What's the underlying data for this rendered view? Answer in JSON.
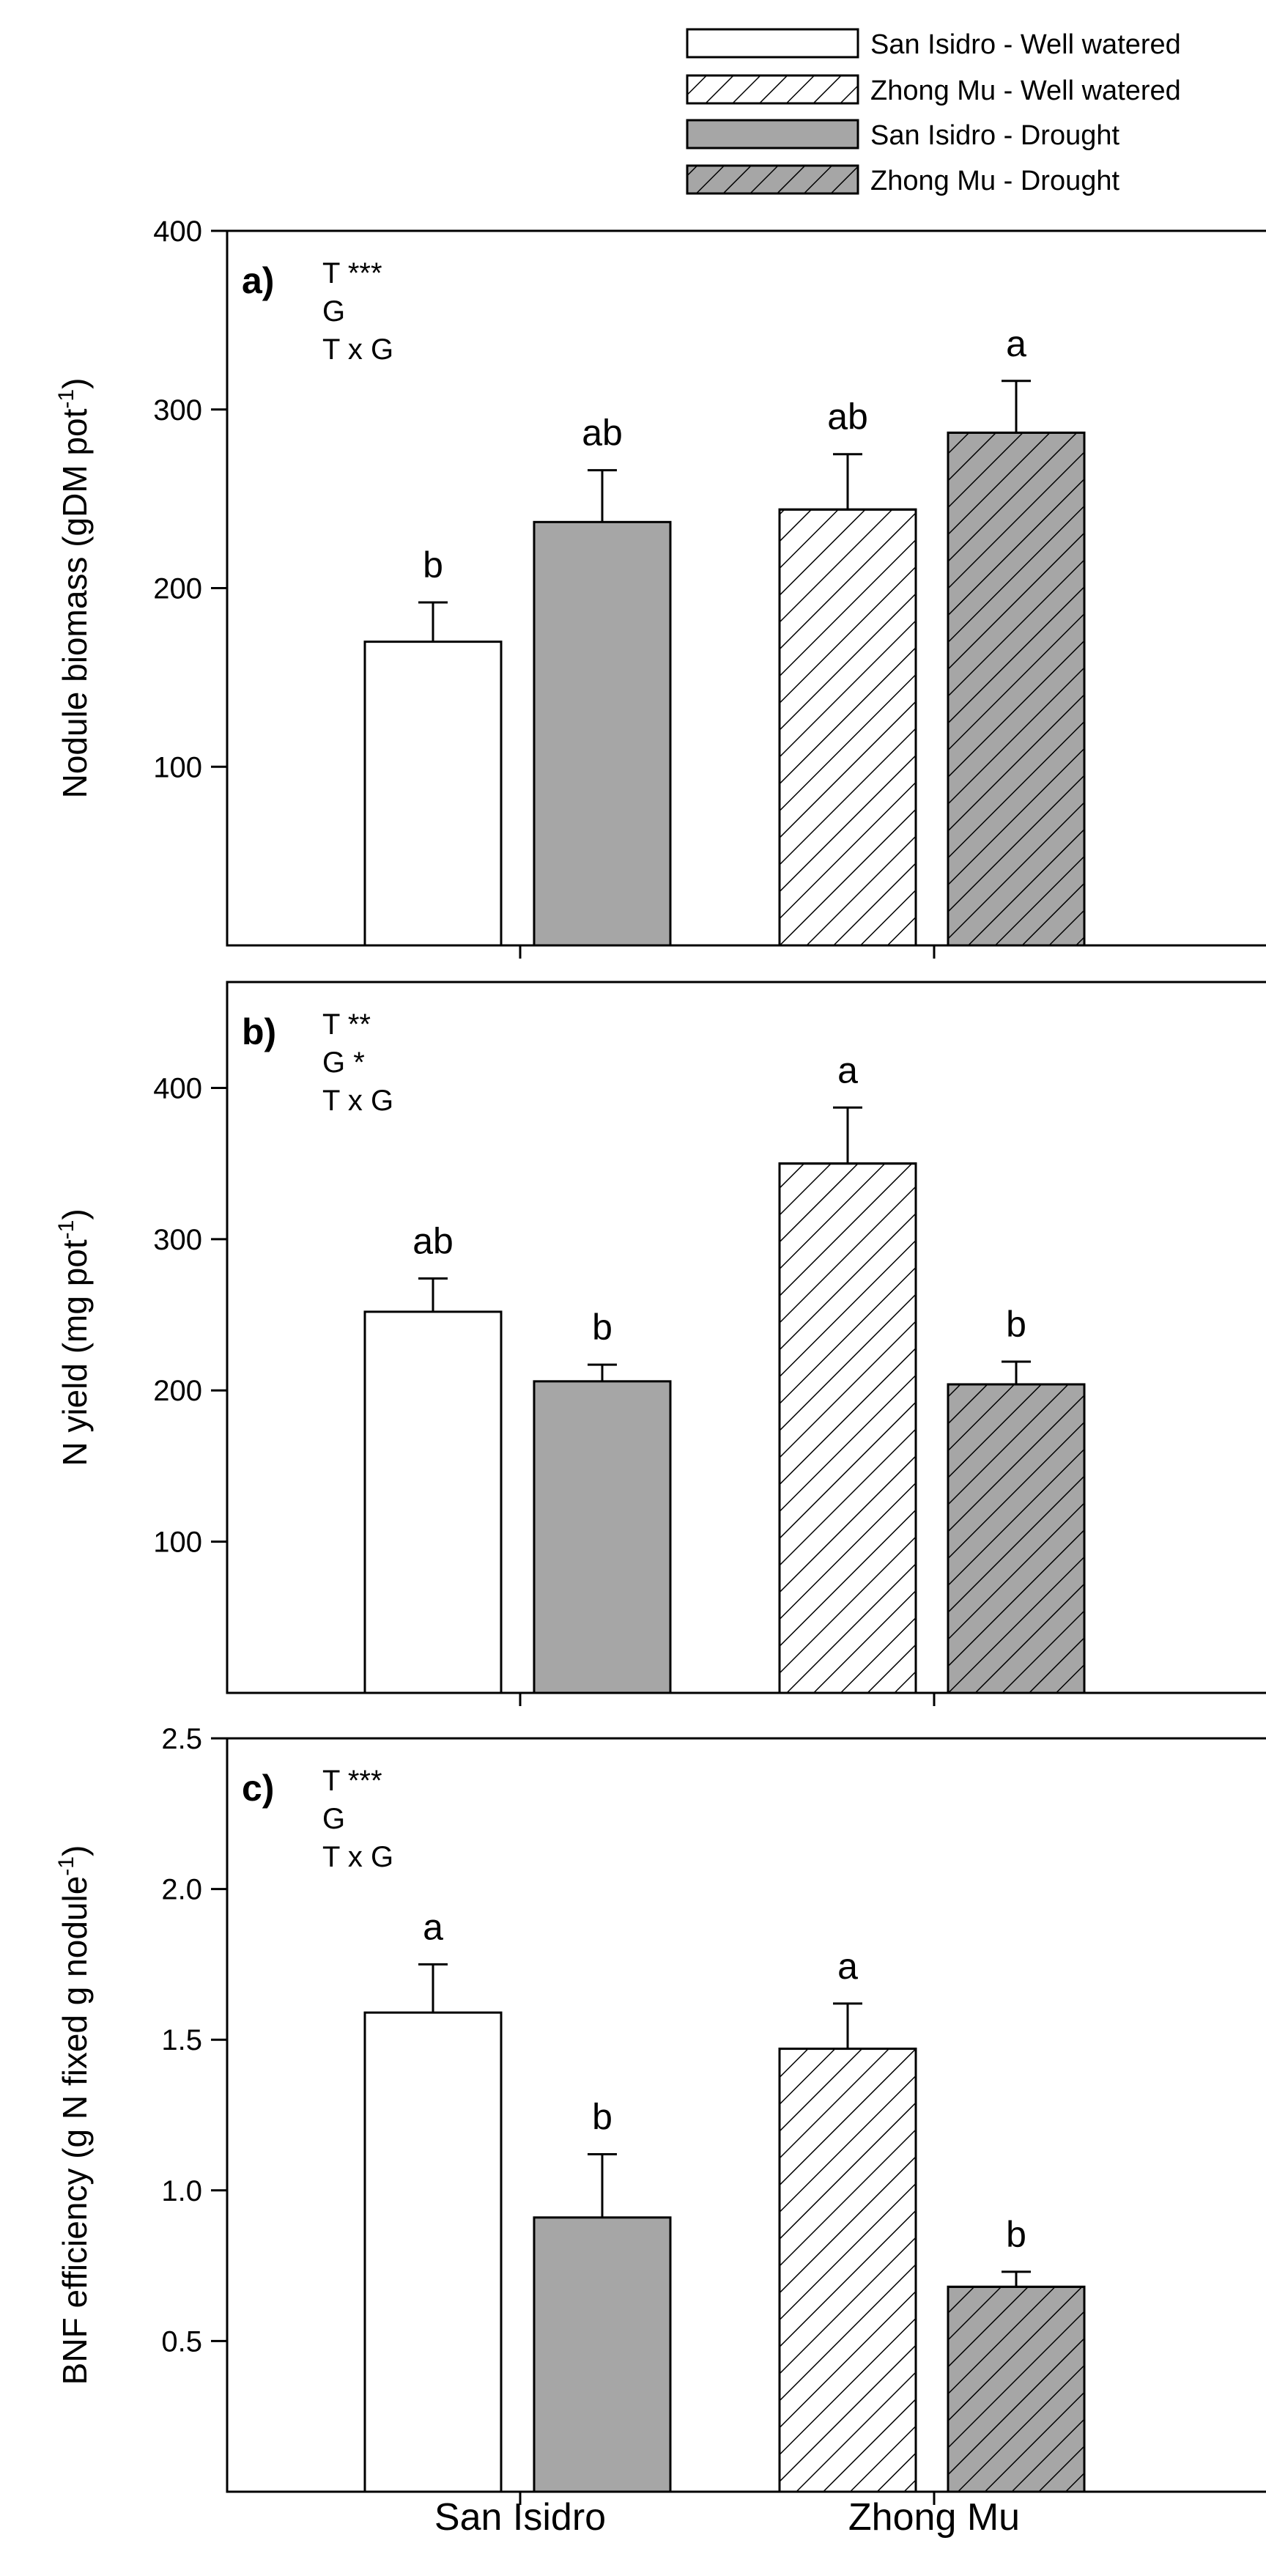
{
  "legend": [
    {
      "label": "San Isidro - Well watered",
      "fill": "#ffffff",
      "hatch": false
    },
    {
      "label": "Zhong Mu -  Well watered",
      "fill": "#ffffff",
      "hatch": true
    },
    {
      "label": "San Isidro - Drought",
      "fill": "#a6a6a6",
      "hatch": false
    },
    {
      "label": "Zhong Mu - Drought",
      "fill": "#a6a6a6",
      "hatch": true
    }
  ],
  "colors": {
    "drought_fill": "#a6a6a6",
    "watered_fill": "#ffffff",
    "stroke": "#000000"
  },
  "x_categories": [
    "San Isidro",
    "Zhong Mu"
  ],
  "chart_data": [
    {
      "type": "bar",
      "panel": "a)",
      "ylabel_main": "Nodule biomass (gDM pot",
      "ylabel_sup": "-1",
      "ylabel_tail": ")",
      "ylim": [
        0,
        400
      ],
      "yticks": [
        100,
        200,
        300,
        400
      ],
      "ytick_labels": [
        "100",
        "200",
        "300",
        "400"
      ],
      "stats": [
        "T ***",
        "G",
        "T x G"
      ],
      "categories": [
        "San Isidro",
        "Zhong Mu"
      ],
      "series": [
        {
          "name": "San Isidro - Well watered",
          "cat": 0,
          "value": 170,
          "error": 22,
          "letter": "b"
        },
        {
          "name": "San Isidro - Drought",
          "cat": 0,
          "value": 237,
          "error": 29,
          "letter": "ab"
        },
        {
          "name": "Zhong Mu -  Well watered",
          "cat": 1,
          "value": 244,
          "error": 31,
          "letter": "ab"
        },
        {
          "name": "Zhong Mu - Drought",
          "cat": 1,
          "value": 287,
          "error": 29,
          "letter": "a"
        }
      ]
    },
    {
      "type": "bar",
      "panel": "b)",
      "ylabel_main": "N yield (mg pot",
      "ylabel_sup": "-1",
      "ylabel_tail": ")",
      "ylim": [
        0,
        470
      ],
      "yticks": [
        100,
        200,
        300,
        400
      ],
      "ytick_labels": [
        "100",
        "200",
        "300",
        "400"
      ],
      "stats": [
        "T **",
        "G *",
        "T x G"
      ],
      "categories": [
        "San Isidro",
        "Zhong Mu"
      ],
      "series": [
        {
          "name": "San Isidro - Well watered",
          "cat": 0,
          "value": 252,
          "error": 22,
          "letter": "ab"
        },
        {
          "name": "San Isidro - Drought",
          "cat": 0,
          "value": 206,
          "error": 11,
          "letter": "b"
        },
        {
          "name": "Zhong Mu -  Well watered",
          "cat": 1,
          "value": 350,
          "error": 37,
          "letter": "a"
        },
        {
          "name": "Zhong Mu - Drought",
          "cat": 1,
          "value": 204,
          "error": 15,
          "letter": "b"
        }
      ]
    },
    {
      "type": "bar",
      "panel": "c)",
      "ylabel_main": "BNF efficiency (g N fixed g nodule",
      "ylabel_sup": "-1",
      "ylabel_tail": ")",
      "ylim": [
        0,
        2.5
      ],
      "yticks": [
        0.5,
        1.0,
        1.5,
        2.0,
        2.5
      ],
      "ytick_labels": [
        "0.5",
        "1.0",
        "1.5",
        "2.0",
        "2.5"
      ],
      "stats": [
        "T ***",
        "G",
        "T x G"
      ],
      "categories": [
        "San Isidro",
        "Zhong Mu"
      ],
      "series": [
        {
          "name": "San Isidro - Well watered",
          "cat": 0,
          "value": 1.59,
          "error": 0.16,
          "letter": "a"
        },
        {
          "name": "San Isidro - Drought",
          "cat": 0,
          "value": 0.91,
          "error": 0.21,
          "letter": "b"
        },
        {
          "name": "Zhong Mu -  Well watered",
          "cat": 1,
          "value": 1.47,
          "error": 0.15,
          "letter": "a"
        },
        {
          "name": "Zhong Mu - Drought",
          "cat": 1,
          "value": 0.68,
          "error": 0.05,
          "letter": "b"
        }
      ]
    }
  ]
}
